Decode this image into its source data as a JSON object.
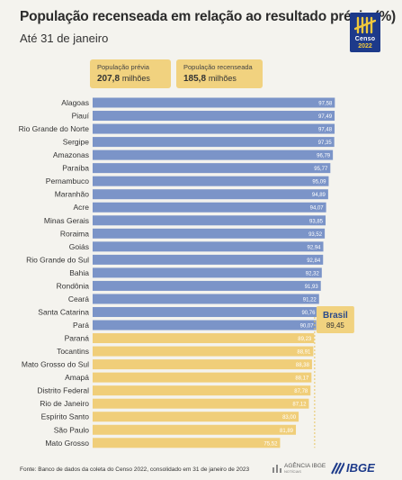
{
  "header": {
    "title": "População recenseada em relação ao resultado prévio (%)",
    "subtitle": "Até 31 de janeiro"
  },
  "logo": {
    "word": "Censo",
    "year": "2022"
  },
  "legend": {
    "previa": {
      "label": "População prévia",
      "value": "207,8",
      "unit": "milhões"
    },
    "recenseada": {
      "label": "População recenseada",
      "value": "185,8",
      "unit": "milhões"
    }
  },
  "colors": {
    "above_average": "#7b94c8",
    "below_average": "#f0ce79",
    "average_marker": "#e8c460",
    "background": "#f4f3ee"
  },
  "chart_data": {
    "type": "bar",
    "orientation": "horizontal",
    "categories": [
      "Alagoas",
      "Piauí",
      "Rio Grande do Norte",
      "Sergipe",
      "Amazonas",
      "Paraíba",
      "Pernambuco",
      "Maranhão",
      "Acre",
      "Minas Gerais",
      "Roraima",
      "Goiás",
      "Rio Grande do Sul",
      "Bahia",
      "Rondônia",
      "Ceará",
      "Santa Catarina",
      "Pará",
      "Paraná",
      "Tocantins",
      "Mato Grosso do Sul",
      "Amapá",
      "Distrito Federal",
      "Rio de Janeiro",
      "Espírito Santo",
      "São Paulo",
      "Mato Grosso"
    ],
    "values": [
      97.58,
      97.49,
      97.48,
      97.35,
      96.79,
      95.77,
      95.09,
      94.89,
      94.07,
      93.85,
      93.52,
      92.94,
      92.84,
      92.32,
      91.93,
      91.22,
      90.76,
      90.07,
      89.23,
      88.91,
      88.38,
      88.17,
      87.78,
      87.12,
      83.0,
      81.89,
      75.52
    ],
    "value_labels": [
      "97,58",
      "97,49",
      "97,48",
      "97,35",
      "96,79",
      "95,77",
      "95,09",
      "94,89",
      "94,07",
      "93,85",
      "93,52",
      "92,94",
      "92,84",
      "92,32",
      "91,93",
      "91,22",
      "90,76",
      "90,07",
      "89,23",
      "88,91",
      "88,38",
      "88,17",
      "87,78",
      "87,12",
      "83,00",
      "81,89",
      "75,52"
    ],
    "reference": {
      "name": "Brasil",
      "value": 89.45,
      "label": "89,45"
    },
    "xlim": [
      0,
      100
    ],
    "grid": false,
    "legend": "top"
  },
  "footer": {
    "source": "Fonte: Banco de dados da coleta do Censo 2022, consolidado em 31 de janeiro de 2023",
    "agency": "AGÊNCIA IBGE",
    "agency_sub": "NOTÍCIAS",
    "ibge": "IBGE"
  }
}
